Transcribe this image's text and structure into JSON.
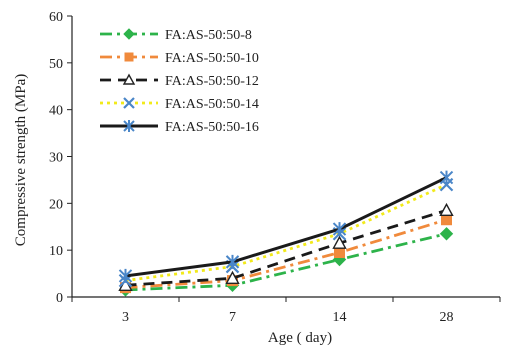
{
  "chart_data": {
    "type": "line",
    "xlabel": "Age ( day)",
    "ylabel": "Compressive strength (MPa)",
    "categories": [
      "3",
      "7",
      "14",
      "28"
    ],
    "x": [
      3,
      7,
      14,
      28
    ],
    "ylim": [
      0,
      60
    ],
    "yticks": [
      0,
      10,
      20,
      30,
      40,
      50,
      60
    ],
    "grid": false,
    "legend_position": "top-left",
    "series": [
      {
        "name": "FA:AS-50:50-8",
        "values": [
          1.5,
          2.5,
          8.0,
          13.5
        ],
        "color": "#2db34a",
        "dash": "dash-dot",
        "marker": "diamond"
      },
      {
        "name": "FA:AS-50:50-10",
        "values": [
          2.0,
          3.5,
          9.5,
          16.5
        ],
        "color": "#f08a3c",
        "dash": "dash-dot",
        "marker": "square"
      },
      {
        "name": "FA:AS-50:50-12",
        "values": [
          2.5,
          4.0,
          11.5,
          18.5
        ],
        "color": "#1a1a1a",
        "dash": "dash",
        "marker": "triangle"
      },
      {
        "name": "FA:AS-50:50-14",
        "values": [
          3.5,
          6.5,
          13.5,
          24.0
        ],
        "color": "#f2ea1a",
        "dash": "dot",
        "marker": "x"
      },
      {
        "name": "FA:AS-50:50-16",
        "values": [
          4.5,
          7.5,
          14.5,
          25.5
        ],
        "color": "#1a1a1a",
        "dash": "solid",
        "marker": "star",
        "marker_color": "#4a86c8"
      }
    ]
  }
}
